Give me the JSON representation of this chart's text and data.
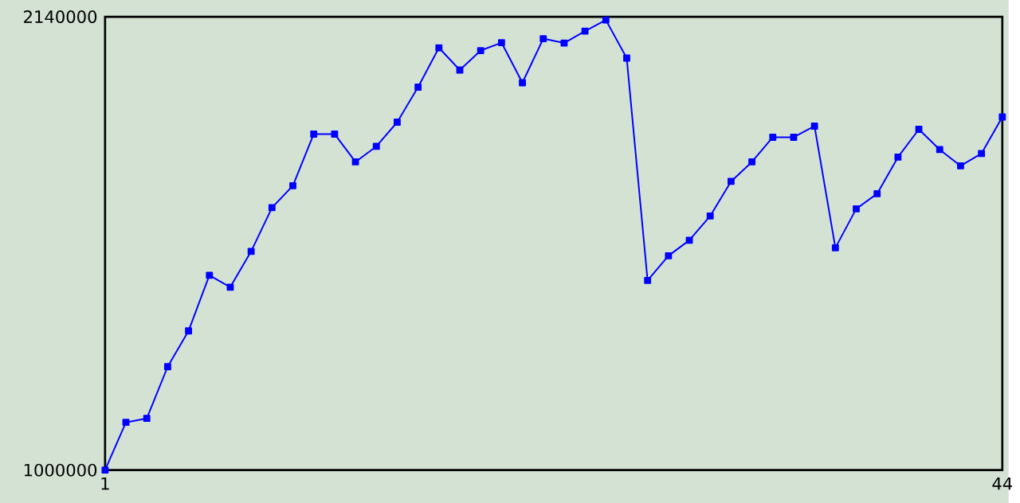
{
  "chart_data": {
    "type": "line",
    "x": [
      1,
      2,
      3,
      4,
      5,
      6,
      7,
      8,
      9,
      10,
      11,
      12,
      13,
      14,
      15,
      16,
      17,
      18,
      19,
      20,
      21,
      22,
      23,
      24,
      25,
      26,
      27,
      28,
      29,
      30,
      31,
      32,
      33,
      34,
      35,
      36,
      37,
      38,
      39,
      40,
      41,
      42,
      43,
      44
    ],
    "series": [
      {
        "color": "#0000ff",
        "values": [
          1000000,
          1120000,
          1130000,
          1260000,
          1350000,
          1490000,
          1460000,
          1550000,
          1660000,
          1715000,
          1845000,
          1845000,
          1775000,
          1814000,
          1875000,
          1963000,
          2062000,
          2006000,
          2055000,
          2075000,
          1974000,
          2085000,
          2074000,
          2104000,
          2132000,
          2036000,
          1477000,
          1539000,
          1578000,
          1639000,
          1726000,
          1775000,
          1837000,
          1837000,
          1865000,
          1559000,
          1657000,
          1695000,
          1787000,
          1857000,
          1806000,
          1765000,
          1796000,
          1888000
        ]
      }
    ],
    "xlim": [
      1,
      44
    ],
    "ylim": [
      1000000,
      2140000
    ],
    "xticks": [
      1,
      44
    ],
    "yticks": [
      1000000,
      2140000
    ],
    "marker": "square",
    "line_style": "solid"
  }
}
